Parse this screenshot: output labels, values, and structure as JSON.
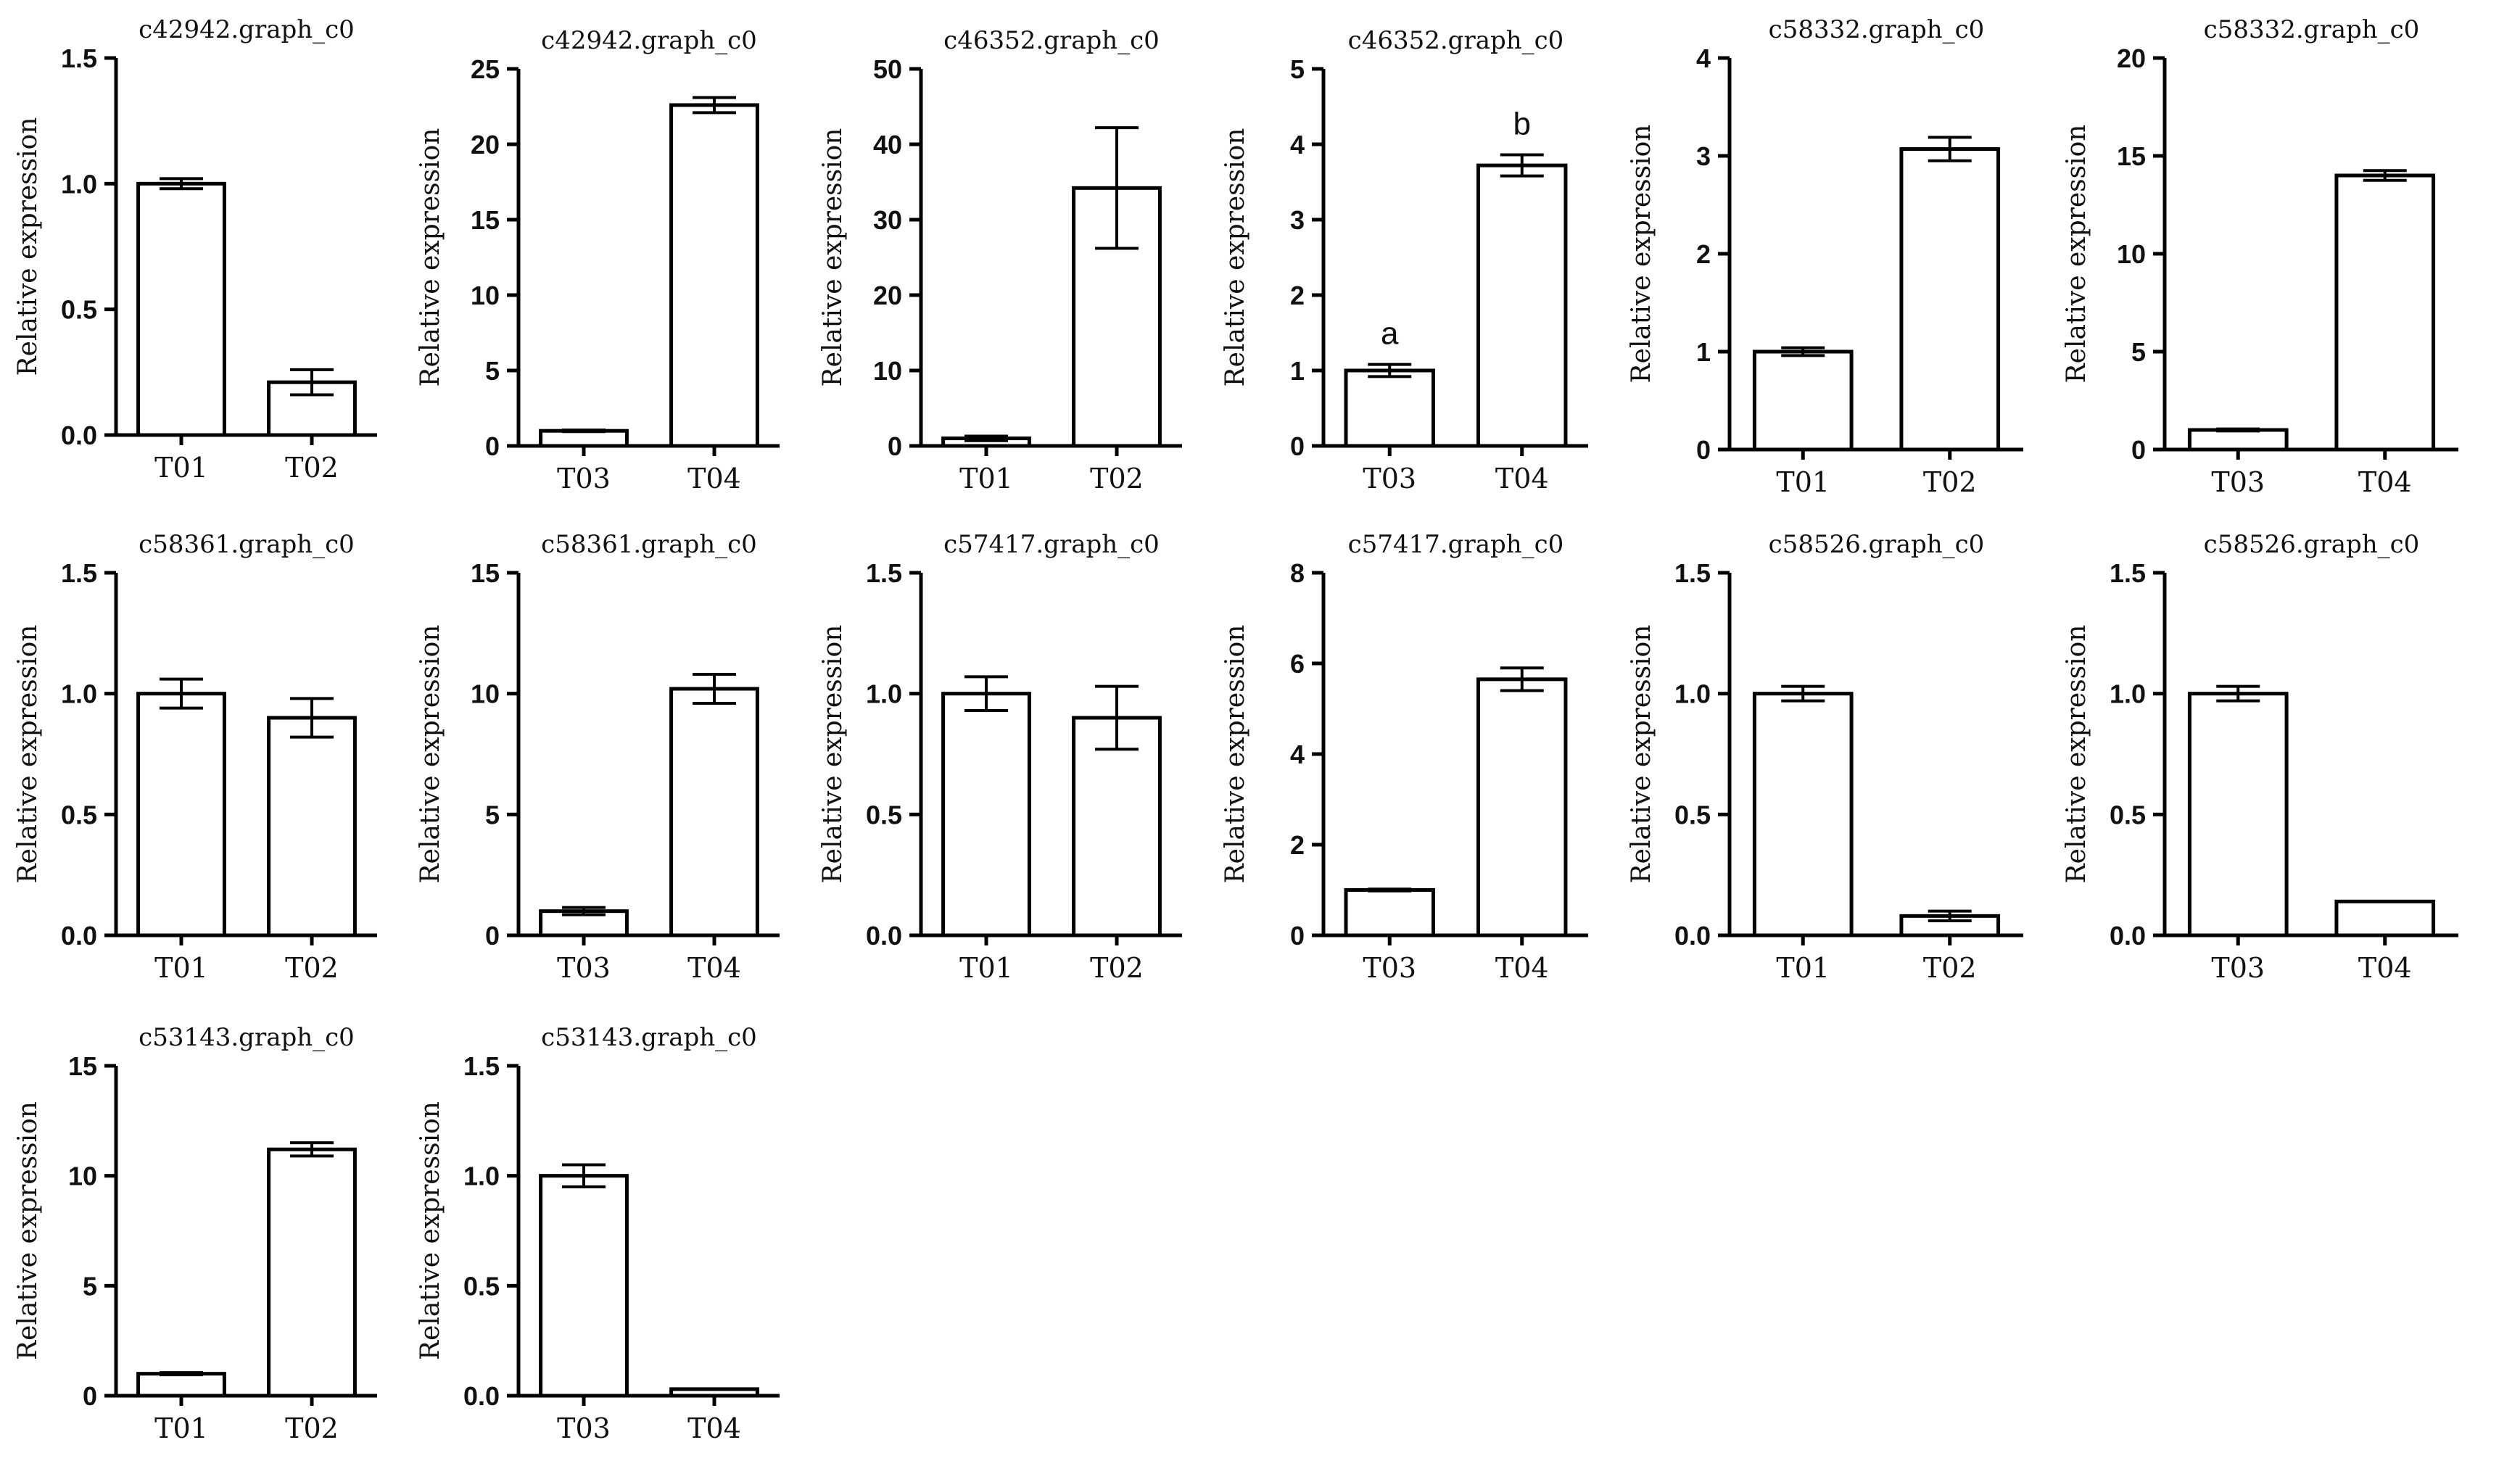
{
  "figure": {
    "background": "#ffffff",
    "bar_fill": "#ffffff",
    "stroke": "#000000"
  },
  "chart_data": [
    {
      "type": "bar",
      "title": "c42942.graph_c0",
      "ylabel": "Relative expression",
      "categories": [
        "T01",
        "T02"
      ],
      "values": [
        1.0,
        0.21
      ],
      "errors": [
        0.02,
        0.05
      ],
      "ylim": [
        0,
        1.5
      ],
      "yticks": [
        0.0,
        0.5,
        1.0,
        1.5
      ],
      "ytick_labels": [
        "0.0",
        "0.5",
        "1.0",
        "1.5"
      ]
    },
    {
      "type": "bar",
      "title": "c42942.graph_c0",
      "ylabel": "Relative expression",
      "categories": [
        "T03",
        "T04"
      ],
      "values": [
        1.0,
        22.6
      ],
      "errors": [
        0.05,
        0.5
      ],
      "ylim": [
        0,
        25
      ],
      "yticks": [
        0,
        5,
        10,
        15,
        20,
        25
      ],
      "ytick_labels": [
        "0",
        "5",
        "10",
        "15",
        "20",
        "25"
      ]
    },
    {
      "type": "bar",
      "title": "c46352.graph_c0",
      "ylabel": "Relative expression",
      "categories": [
        "T01",
        "T02"
      ],
      "values": [
        1.0,
        34.2
      ],
      "errors": [
        0.3,
        8.0
      ],
      "ylim": [
        0,
        50
      ],
      "yticks": [
        0,
        10,
        20,
        30,
        40,
        50
      ],
      "ytick_labels": [
        "0",
        "10",
        "20",
        "30",
        "40",
        "50"
      ]
    },
    {
      "type": "bar",
      "title": "c46352.graph_c0",
      "ylabel": "Relative expression",
      "categories": [
        "T03",
        "T04"
      ],
      "values": [
        1.0,
        3.72
      ],
      "errors": [
        0.08,
        0.14
      ],
      "ylim": [
        0,
        5
      ],
      "yticks": [
        0,
        1,
        2,
        3,
        4,
        5
      ],
      "ytick_labels": [
        "0",
        "1",
        "2",
        "3",
        "4",
        "5"
      ],
      "annotations": [
        "a",
        "b"
      ]
    },
    {
      "type": "bar",
      "title": "c58332.graph_c0",
      "ylabel": "Relative expression",
      "categories": [
        "T01",
        "T02"
      ],
      "values": [
        1.0,
        3.07
      ],
      "errors": [
        0.04,
        0.12
      ],
      "ylim": [
        0,
        4
      ],
      "yticks": [
        0,
        1,
        2,
        3,
        4
      ],
      "ytick_labels": [
        "0",
        "1",
        "2",
        "3",
        "4"
      ]
    },
    {
      "type": "bar",
      "title": "c58332.graph_c0",
      "ylabel": "Relative expression",
      "categories": [
        "T03",
        "T04"
      ],
      "values": [
        1.0,
        14.0
      ],
      "errors": [
        0.05,
        0.25
      ],
      "ylim": [
        0,
        20
      ],
      "yticks": [
        0,
        5,
        10,
        15,
        20
      ],
      "ytick_labels": [
        "0",
        "5",
        "10",
        "15",
        "20"
      ]
    },
    {
      "type": "bar",
      "title": "c58361.graph_c0",
      "ylabel": "Relative expression",
      "categories": [
        "T01",
        "T02"
      ],
      "values": [
        1.0,
        0.9
      ],
      "errors": [
        0.06,
        0.08
      ],
      "ylim": [
        0,
        1.5
      ],
      "yticks": [
        0.0,
        0.5,
        1.0,
        1.5
      ],
      "ytick_labels": [
        "0.0",
        "0.5",
        "1.0",
        "1.5"
      ]
    },
    {
      "type": "bar",
      "title": "c58361.graph_c0",
      "ylabel": "Relative expression",
      "categories": [
        "T03",
        "T04"
      ],
      "values": [
        1.0,
        10.2
      ],
      "errors": [
        0.15,
        0.6
      ],
      "ylim": [
        0,
        15
      ],
      "yticks": [
        0,
        5,
        10,
        15
      ],
      "ytick_labels": [
        "0",
        "5",
        "10",
        "15"
      ]
    },
    {
      "type": "bar",
      "title": "c57417.graph_c0",
      "ylabel": "Relative expression",
      "categories": [
        "T01",
        "T02"
      ],
      "values": [
        1.0,
        0.9
      ],
      "errors": [
        0.07,
        0.13
      ],
      "ylim": [
        0,
        1.5
      ],
      "yticks": [
        0.0,
        0.5,
        1.0,
        1.5
      ],
      "ytick_labels": [
        "0.0",
        "0.5",
        "1.0",
        "1.5"
      ]
    },
    {
      "type": "bar",
      "title": "c57417.graph_c0",
      "ylabel": "Relative expression",
      "categories": [
        "T03",
        "T04"
      ],
      "values": [
        1.0,
        5.65
      ],
      "errors": [
        0.02,
        0.25
      ],
      "ylim": [
        0,
        8
      ],
      "yticks": [
        0,
        2,
        4,
        6,
        8
      ],
      "ytick_labels": [
        "0",
        "2",
        "4",
        "6",
        "8"
      ]
    },
    {
      "type": "bar",
      "title": "c58526.graph_c0",
      "ylabel": "Relative expression",
      "categories": [
        "T01",
        "T02"
      ],
      "values": [
        1.0,
        0.08
      ],
      "errors": [
        0.03,
        0.02
      ],
      "ylim": [
        0,
        1.5
      ],
      "yticks": [
        0.0,
        0.5,
        1.0,
        1.5
      ],
      "ytick_labels": [
        "0.0",
        "0.5",
        "1.0",
        "1.5"
      ]
    },
    {
      "type": "bar",
      "title": "c58526.graph_c0",
      "ylabel": "Relative expression",
      "categories": [
        "T03",
        "T04"
      ],
      "values": [
        1.0,
        0.14
      ],
      "errors": [
        0.03,
        0.0
      ],
      "ylim": [
        0,
        1.5
      ],
      "yticks": [
        0.0,
        0.5,
        1.0,
        1.5
      ],
      "ytick_labels": [
        "0.0",
        "0.5",
        "1.0",
        "1.5"
      ]
    },
    {
      "type": "bar",
      "title": "c53143.graph_c0",
      "ylabel": "Relative expression",
      "categories": [
        "T01",
        "T02"
      ],
      "values": [
        1.0,
        11.2
      ],
      "errors": [
        0.05,
        0.3
      ],
      "ylim": [
        0,
        15
      ],
      "yticks": [
        0,
        5,
        10,
        15
      ],
      "ytick_labels": [
        "0",
        "5",
        "10",
        "15"
      ]
    },
    {
      "type": "bar",
      "title": "c53143.graph_c0",
      "ylabel": "Relative expression",
      "categories": [
        "T03",
        "T04"
      ],
      "values": [
        1.0,
        0.03
      ],
      "errors": [
        0.05,
        0.0
      ],
      "ylim": [
        0,
        1.5
      ],
      "yticks": [
        0.0,
        0.5,
        1.0,
        1.5
      ],
      "ytick_labels": [
        "0.0",
        "0.5",
        "1.0",
        "1.5"
      ]
    }
  ]
}
